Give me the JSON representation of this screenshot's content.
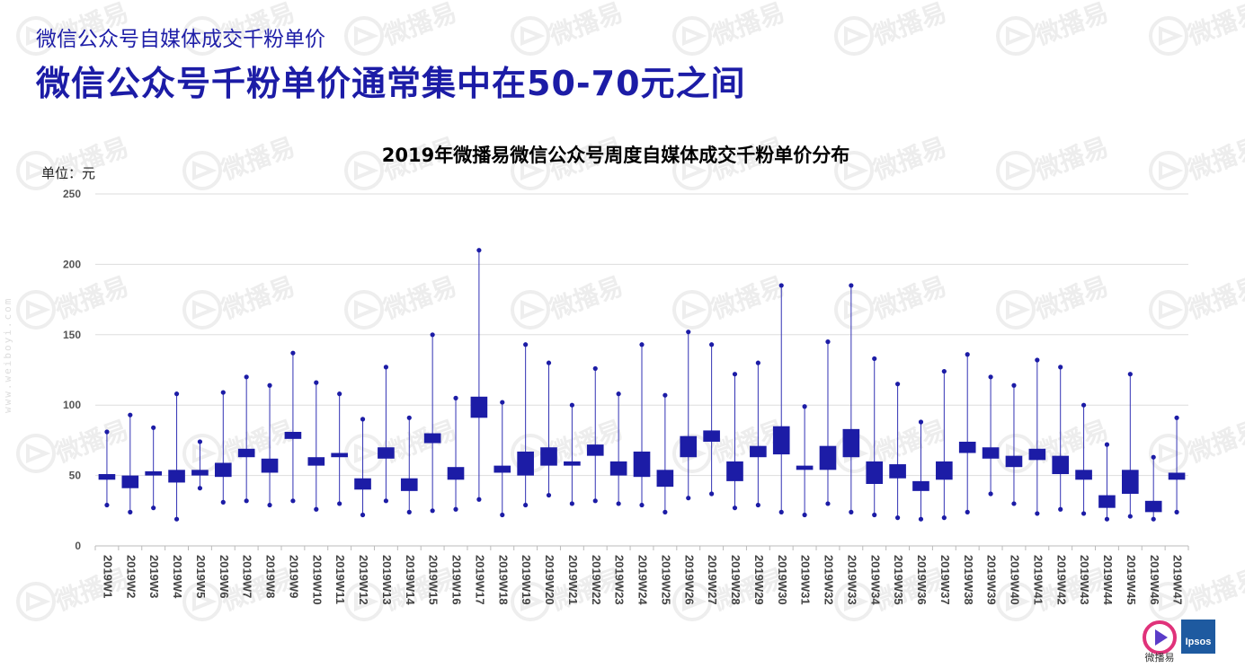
{
  "header": {
    "subtitle": "微信公众号自媒体成交千粉单价",
    "headline": "微信公众号千粉单价通常集中在50-70元之间"
  },
  "chart_title": "2019年微播易微信公众号周度自媒体成交千粉单价分布",
  "unit_label": "单位：元",
  "watermark": {
    "text": "微播易",
    "side_url": "www.weiboyi.com"
  },
  "logos": {
    "weibo_label": "微播易",
    "ipsos_label": "Ipsos"
  },
  "colors": {
    "box": "#1c1ca6",
    "whisker": "#3232b4",
    "grid": "#dddddd",
    "axis": "#bbbbbb"
  },
  "chart_data": {
    "type": "boxplot",
    "title": "2019年微播易微信公众号周度自媒体成交千粉单价分布",
    "ylabel": "单位：元",
    "ylim": [
      0,
      250
    ],
    "yticks": [
      0,
      50,
      100,
      150,
      200,
      250
    ],
    "grid": true,
    "categories": [
      "2019W1",
      "2019W2",
      "2019W3",
      "2019W4",
      "2019W5",
      "2019W6",
      "2019W7",
      "2019W8",
      "2019W9",
      "2019W10",
      "2019W11",
      "2019W12",
      "2019W13",
      "2019W14",
      "2019W15",
      "2019W16",
      "2019W17",
      "2019W18",
      "2019W19",
      "2019W20",
      "2019W21",
      "2019W22",
      "2019W23",
      "2019W24",
      "2019W25",
      "2019W26",
      "2019W27",
      "2019W28",
      "2019W29",
      "2019W30",
      "2019W31",
      "2019W32",
      "2019W33",
      "2019W34",
      "2019W35",
      "2019W36",
      "2019W37",
      "2019W38",
      "2019W39",
      "2019W40",
      "2019W41",
      "2019W42",
      "2019W43",
      "2019W44",
      "2019W45",
      "2019W46",
      "2019W47"
    ],
    "min": [
      29,
      24,
      27,
      19,
      41,
      31,
      32,
      29,
      32,
      26,
      30,
      22,
      32,
      24,
      25,
      26,
      33,
      22,
      29,
      36,
      30,
      32,
      30,
      29,
      24,
      34,
      37,
      27,
      29,
      24,
      22,
      30,
      24,
      22,
      20,
      19,
      20,
      24,
      37,
      30,
      23,
      26,
      23,
      19,
      21,
      19,
      24
    ],
    "q1": [
      47,
      41,
      50,
      45,
      50,
      49,
      63,
      52,
      76,
      57,
      63,
      40,
      62,
      39,
      73,
      47,
      91,
      52,
      50,
      57,
      57,
      64,
      50,
      49,
      42,
      63,
      74,
      46,
      63,
      65,
      54,
      54,
      63,
      44,
      48,
      39,
      47,
      66,
      62,
      56,
      61,
      51,
      47,
      27,
      37,
      24,
      47
    ],
    "q3": [
      51,
      50,
      53,
      54,
      54,
      59,
      69,
      62,
      81,
      63,
      66,
      48,
      70,
      48,
      80,
      56,
      106,
      57,
      67,
      70,
      60,
      72,
      60,
      67,
      54,
      78,
      82,
      60,
      71,
      85,
      57,
      71,
      83,
      60,
      58,
      46,
      60,
      74,
      70,
      64,
      69,
      64,
      54,
      36,
      54,
      32,
      52
    ],
    "max": [
      81,
      93,
      84,
      108,
      74,
      109,
      120,
      114,
      137,
      116,
      108,
      90,
      127,
      91,
      150,
      105,
      210,
      102,
      143,
      130,
      100,
      126,
      108,
      143,
      107,
      152,
      143,
      122,
      130,
      185,
      99,
      145,
      185,
      133,
      115,
      88,
      124,
      136,
      120,
      114,
      132,
      127,
      100,
      72,
      122,
      63,
      91
    ]
  }
}
